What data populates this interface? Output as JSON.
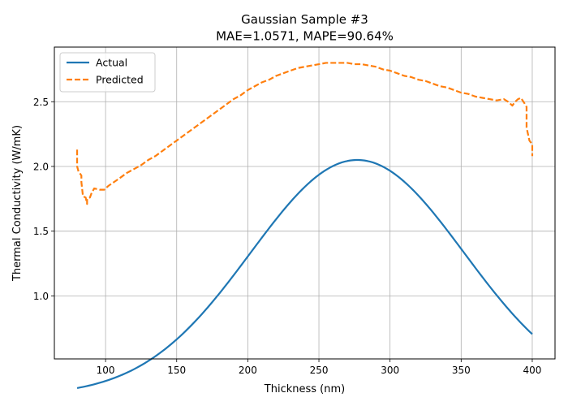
{
  "chart_data": {
    "type": "line",
    "title": "Gaussian Sample #3",
    "subtitle": "MAE=1.0571, MAPE=90.64%",
    "xlabel": "Thickness (nm)",
    "ylabel": "Thermal Conductivity (W/mK)",
    "xlim": [
      64,
      416
    ],
    "ylim": [
      0.513,
      2.922
    ],
    "xticks": [
      100,
      150,
      200,
      250,
      300,
      350,
      400
    ],
    "yticks": [
      1.0,
      1.5,
      2.0,
      2.5
    ],
    "xtick_labels": [
      "100",
      "150",
      "200",
      "250",
      "300",
      "350",
      "400"
    ],
    "ytick_labels": [
      "1.0",
      "1.5",
      "2.0",
      "2.5"
    ],
    "grid": true,
    "legend_position": "top-left",
    "series": [
      {
        "name": "Actual",
        "style": "solid",
        "color": "#1f77b4",
        "gaussian": {
          "amplitude": 1.82,
          "center": 277,
          "sigma": 75,
          "offset": 0.23
        },
        "x_range": [
          80,
          400
        ]
      },
      {
        "name": "Predicted",
        "style": "dashed",
        "color": "#ff7f0e",
        "x": [
          80,
          80,
          81,
          83,
          83,
          84,
          84,
          86,
          87,
          87,
          89,
          90,
          92,
          96,
          99,
          102,
          106,
          110,
          115,
          120,
          125,
          130,
          135,
          140,
          145,
          150,
          155,
          160,
          165,
          170,
          175,
          180,
          185,
          190,
          195,
          200,
          205,
          210,
          215,
          220,
          225,
          230,
          235,
          240,
          245,
          250,
          255,
          260,
          265,
          270,
          275,
          280,
          285,
          290,
          295,
          300,
          305,
          310,
          315,
          320,
          325,
          330,
          335,
          340,
          345,
          350,
          355,
          360,
          365,
          370,
          375,
          380,
          383,
          386,
          388,
          390,
          392,
          395,
          396,
          396,
          397,
          398,
          400,
          400
        ],
        "y": [
          2.13,
          2.0,
          1.96,
          1.93,
          1.88,
          1.78,
          1.77,
          1.76,
          1.71,
          1.75,
          1.76,
          1.79,
          1.83,
          1.82,
          1.82,
          1.85,
          1.88,
          1.91,
          1.95,
          1.98,
          2.01,
          2.05,
          2.08,
          2.12,
          2.16,
          2.2,
          2.24,
          2.28,
          2.32,
          2.36,
          2.4,
          2.44,
          2.48,
          2.52,
          2.55,
          2.59,
          2.62,
          2.65,
          2.67,
          2.7,
          2.72,
          2.74,
          2.76,
          2.77,
          2.78,
          2.79,
          2.8,
          2.8,
          2.8,
          2.8,
          2.79,
          2.79,
          2.78,
          2.77,
          2.75,
          2.74,
          2.72,
          2.7,
          2.69,
          2.67,
          2.66,
          2.64,
          2.62,
          2.61,
          2.59,
          2.57,
          2.56,
          2.54,
          2.53,
          2.52,
          2.51,
          2.52,
          2.5,
          2.47,
          2.5,
          2.52,
          2.53,
          2.48,
          2.46,
          2.3,
          2.25,
          2.2,
          2.17,
          2.08
        ]
      }
    ]
  }
}
